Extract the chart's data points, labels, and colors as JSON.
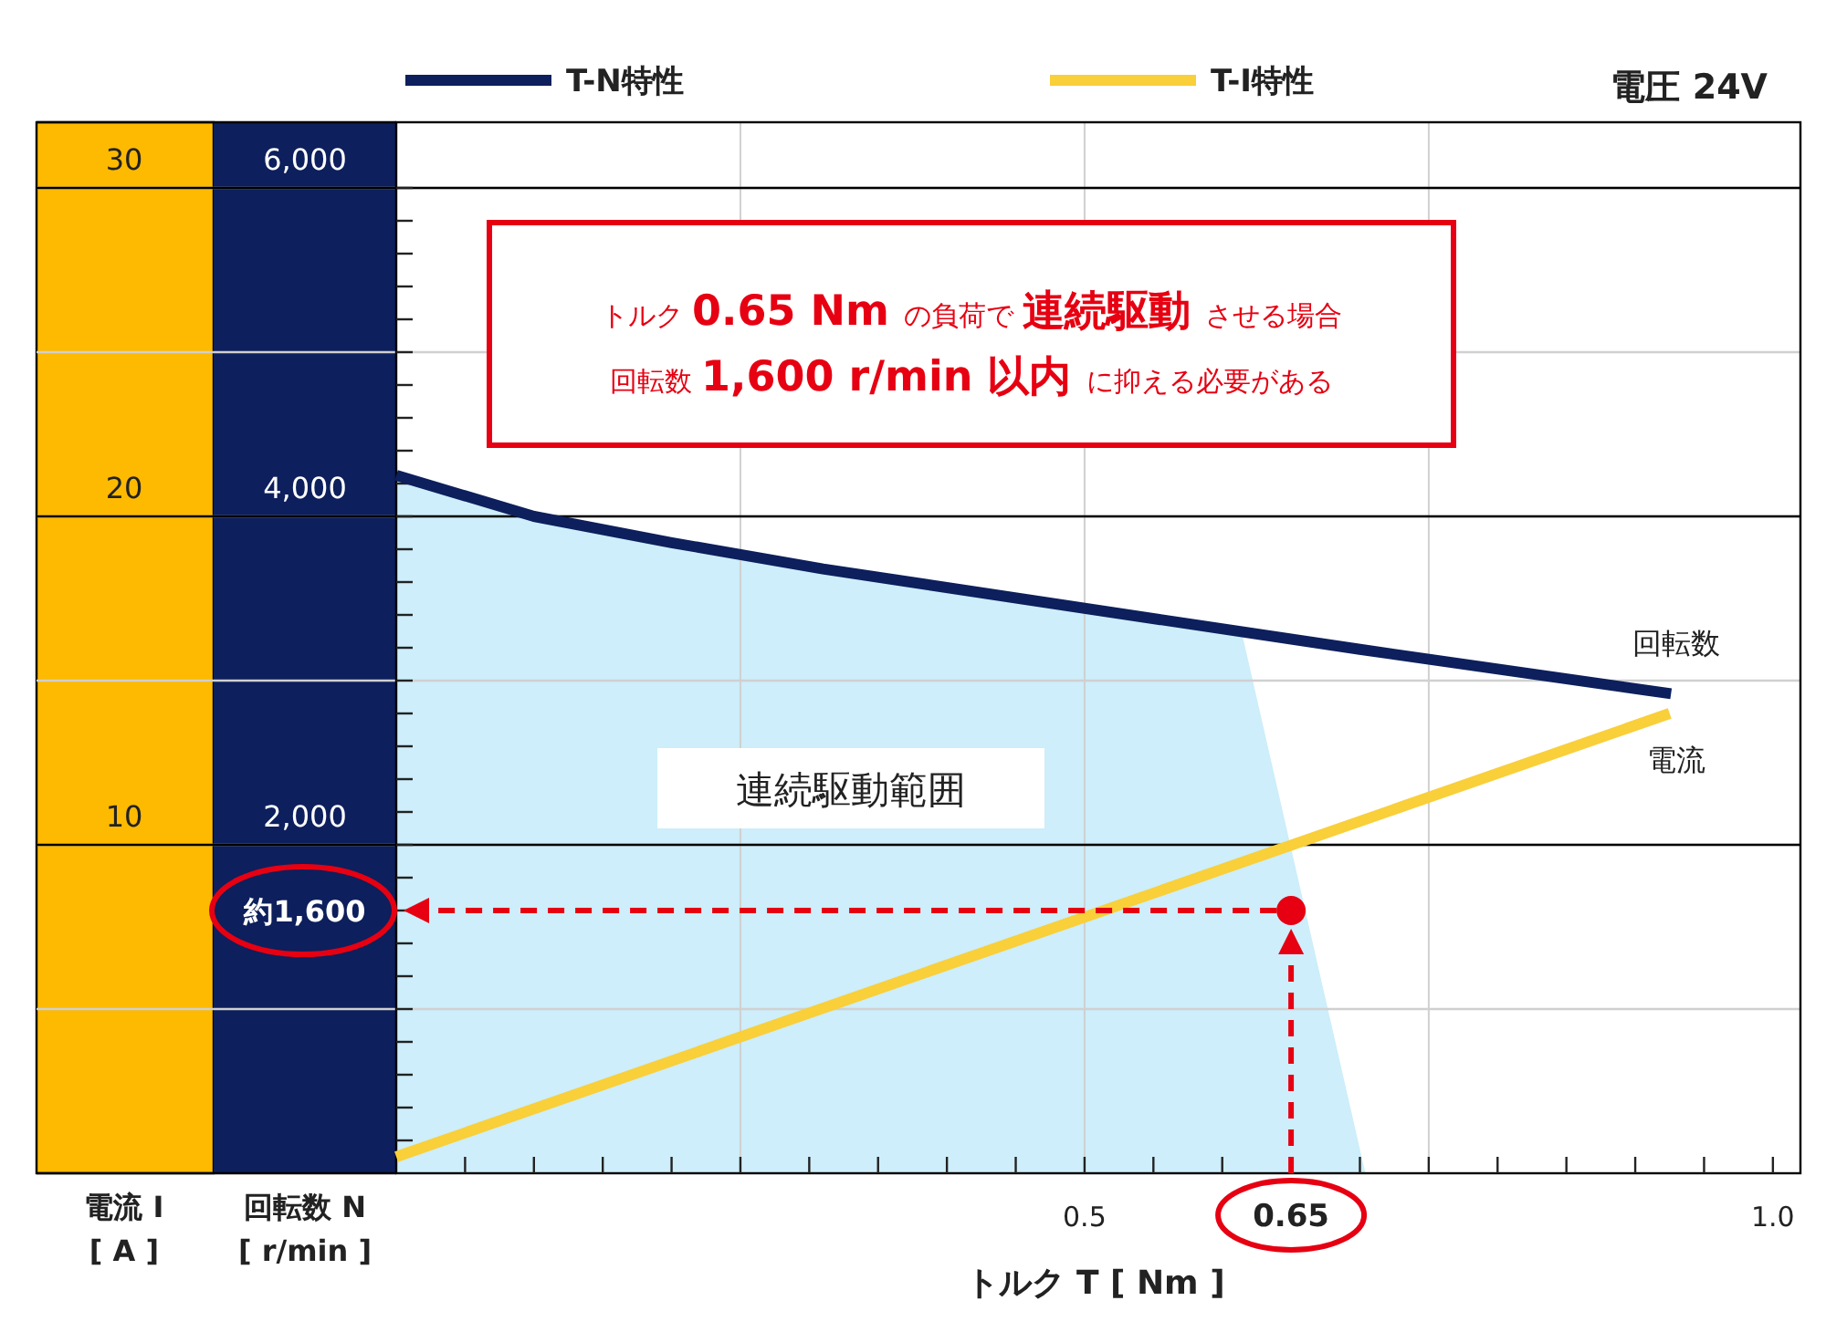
{
  "chart_data": {
    "type": "line",
    "title": "電圧 24V",
    "xlabel": "トルク T [ Nm ]",
    "ylabel": "回転数 N\n[ r/min ]",
    "y2label": "電流 I\n[ A ]",
    "legend": "top",
    "grid": true,
    "xlim": [
      0,
      1.02
    ],
    "xticks": [
      {
        "value": 0.05,
        "label": null
      },
      {
        "value": 0.1,
        "label": null
      },
      {
        "value": 0.15,
        "label": null
      },
      {
        "value": 0.2,
        "label": null
      },
      {
        "value": 0.25,
        "label": null
      },
      {
        "value": 0.3,
        "label": null
      },
      {
        "value": 0.35,
        "label": null
      },
      {
        "value": 0.4,
        "label": null
      },
      {
        "value": 0.45,
        "label": null
      },
      {
        "value": 0.5,
        "label": "0.5"
      },
      {
        "value": 0.55,
        "label": null
      },
      {
        "value": 0.6,
        "label": null
      },
      {
        "value": 0.65,
        "label": "0.65"
      },
      {
        "value": 0.7,
        "label": null
      },
      {
        "value": 0.75,
        "label": null
      },
      {
        "value": 0.8,
        "label": null
      },
      {
        "value": 0.85,
        "label": null
      },
      {
        "value": 0.9,
        "label": null
      },
      {
        "value": 0.95,
        "label": null
      },
      {
        "value": 1.0,
        "label": "1.0"
      }
    ],
    "ylim": [
      0,
      6400
    ],
    "yticks": [
      {
        "value": 200,
        "label": null
      },
      {
        "value": 400,
        "label": null
      },
      {
        "value": 600,
        "label": null
      },
      {
        "value": 800,
        "label": null
      },
      {
        "value": 1000,
        "label": null
      },
      {
        "value": 1200,
        "label": null
      },
      {
        "value": 1400,
        "label": null
      },
      {
        "value": 1600,
        "label": null
      },
      {
        "value": 1800,
        "label": null
      },
      {
        "value": 2000,
        "label": "2,000"
      },
      {
        "value": 2200,
        "label": null
      },
      {
        "value": 2400,
        "label": null
      },
      {
        "value": 2600,
        "label": null
      },
      {
        "value": 2800,
        "label": null
      },
      {
        "value": 3000,
        "label": null
      },
      {
        "value": 3200,
        "label": null
      },
      {
        "value": 3400,
        "label": null
      },
      {
        "value": 3600,
        "label": null
      },
      {
        "value": 3800,
        "label": null
      },
      {
        "value": 4000,
        "label": "4,000"
      },
      {
        "value": 4200,
        "label": null
      },
      {
        "value": 4400,
        "label": null
      },
      {
        "value": 4600,
        "label": null
      },
      {
        "value": 4800,
        "label": null
      },
      {
        "value": 5000,
        "label": null
      },
      {
        "value": 5200,
        "label": null
      },
      {
        "value": 5400,
        "label": null
      },
      {
        "value": 5600,
        "label": null
      },
      {
        "value": 5800,
        "label": null
      },
      {
        "value": 6000,
        "label": "6,000"
      }
    ],
    "y2lim": [
      0,
      32
    ],
    "y2ticks": [
      10,
      20,
      30
    ],
    "series": [
      {
        "type": "area",
        "color": "#cdeefa",
        "x": [
          0,
          0.1,
          0.2,
          0.31,
          0.5,
          0.614,
          0.704
        ],
        "values": [
          4250,
          4000,
          3840,
          3680,
          3440,
          3300,
          0
        ]
      },
      {
        "type": "line",
        "name": "T-N特性",
        "color": "#0d1f5c",
        "x": [
          0,
          0.1,
          0.2,
          0.31,
          0.5,
          0.7,
          0.926
        ],
        "values": [
          4250,
          4000,
          3840,
          3680,
          3440,
          3190,
          2920
        ]
      },
      {
        "type": "line",
        "name": "T-I特性",
        "color": "#f9cf3a",
        "axis": "y2",
        "x": [
          0,
          0.925
        ],
        "values": [
          0.5,
          14.0
        ]
      },
      {
        "type": "scatter",
        "color": "#e60012",
        "marker": "circle",
        "x": [
          0.65
        ],
        "values": [
          1600
        ]
      }
    ],
    "annotations": [
      "トルク **0.65 Nm** の負荷で **連続駆動** させる場合",
      "回転数 **1,600 r/min 以内** に抑える必要がある",
      "連続駆動範囲",
      "回転数",
      "電流",
      "約1,600"
    ]
  }
}
